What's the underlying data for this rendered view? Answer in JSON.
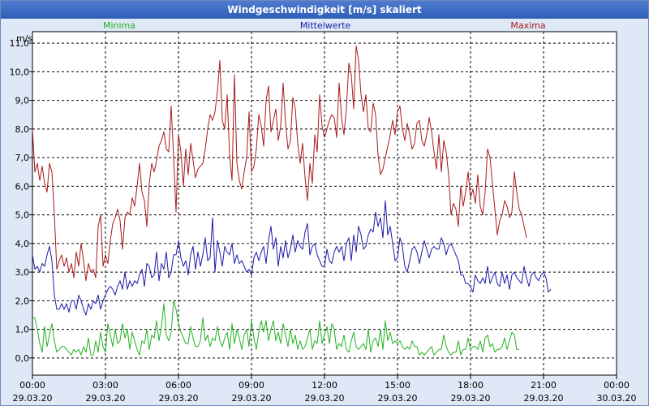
{
  "window": {
    "title": "Windgeschwindigkeit [m/s] skaliert"
  },
  "chart_data": {
    "type": "line",
    "title": "Windgeschwindigkeit [m/s] skaliert",
    "ylabel": "m/s",
    "xlabel": "",
    "ylim": [
      -0.6,
      11.4
    ],
    "yticks": [
      0.0,
      1.0,
      2.0,
      3.0,
      4.0,
      5.0,
      6.0,
      7.0,
      8.0,
      9.0,
      10.0,
      11.0
    ],
    "ytick_labels": [
      "0,0",
      "1,0",
      "2,0",
      "3,0",
      "4,0",
      "5,0",
      "6,0",
      "7,0",
      "8,0",
      "9,0",
      "10,0",
      "11,0"
    ],
    "xlim": [
      0,
      24
    ],
    "xticks": [
      0,
      3,
      6,
      9,
      12,
      15,
      18,
      21,
      24
    ],
    "xtick_labels": [
      [
        "00:00",
        "29.03.20"
      ],
      [
        "03:00",
        "29.03.20"
      ],
      [
        "06:00",
        "29.03.20"
      ],
      [
        "09:00",
        "29.03.20"
      ],
      [
        "12:00",
        "29.03.20"
      ],
      [
        "15:00",
        "29.03.20"
      ],
      [
        "18:00",
        "29.03.20"
      ],
      [
        "21:00",
        "29.03.20"
      ],
      [
        "00:00",
        "30.03.20"
      ]
    ],
    "grid": true,
    "legend_position": "top",
    "x_step_hours": 0.1,
    "series": [
      {
        "name": "Minima",
        "color": "#22b022",
        "values": [
          1.4,
          1.4,
          1.0,
          0.5,
          0.2,
          1.1,
          0.4,
          0.8,
          1.2,
          0.6,
          0.2,
          0.3,
          0.4,
          0.4,
          0.3,
          0.2,
          0.1,
          0.3,
          0.2,
          0.3,
          0.1,
          0.4,
          0.2,
          0.7,
          0.1,
          0.1,
          0.6,
          0.2,
          0.9,
          0.4,
          0.2,
          1.2,
          0.8,
          0.4,
          1.0,
          0.5,
          0.6,
          1.2,
          0.7,
          1.0,
          0.3,
          0.9,
          0.6,
          0.3,
          0.1,
          0.6,
          0.5,
          1.0,
          0.3,
          0.8,
          0.7,
          1.3,
          0.6,
          1.1,
          1.9,
          0.8,
          0.6,
          0.9,
          2.0,
          1.7,
          1.2,
          0.9,
          0.7,
          0.5,
          0.5,
          1.1,
          0.7,
          0.4,
          0.4,
          0.6,
          1.4,
          0.6,
          0.8,
          0.4,
          0.7,
          0.6,
          1.1,
          0.6,
          0.4,
          0.7,
          0.9,
          0.3,
          1.2,
          0.5,
          1.0,
          0.7,
          0.3,
          0.8,
          1.0,
          0.4,
          1.3,
          0.7,
          0.3,
          0.9,
          1.3,
          0.9,
          1.3,
          0.6,
          1.0,
          1.3,
          0.6,
          0.9,
          0.5,
          1.2,
          0.8,
          0.4,
          1.0,
          0.5,
          0.8,
          0.3,
          0.6,
          0.3,
          0.4,
          0.7,
          1.0,
          0.3,
          0.6,
          0.5,
          1.3,
          0.5,
          0.8,
          1.1,
          0.5,
          1.2,
          1.0,
          0.3,
          0.5,
          0.4,
          0.8,
          0.3,
          0.2,
          0.6,
          0.9,
          0.4,
          0.3,
          0.4,
          0.5,
          0.3,
          1.0,
          0.2,
          0.6,
          0.7,
          0.4,
          1.0,
          0.3,
          1.3,
          0.6,
          0.9,
          0.5,
          0.6,
          0.5,
          0.6,
          0.4,
          0.3,
          0.4,
          0.3,
          0.6,
          0.4,
          0.4,
          0.1,
          0.2,
          0.1,
          0.2,
          0.3,
          0.4,
          0.1,
          0.2,
          0.3,
          0.3,
          0.8,
          0.4,
          0.2,
          0.1,
          0.2,
          0.2,
          0.6,
          0.1,
          0.3,
          0.3,
          0.7,
          0.3,
          0.4,
          0.4,
          0.3,
          0.6,
          0.2,
          0.7,
          0.8,
          0.4,
          0.5,
          0.2,
          0.3,
          0.3,
          0.4,
          0.7,
          0.3,
          0.6,
          0.9,
          0.8,
          0.3,
          0.3
        ]
      },
      {
        "name": "Mittelwerte",
        "color": "#1a1aa8",
        "values": [
          3.6,
          3.1,
          3.2,
          3.0,
          3.3,
          3.2,
          3.6,
          3.9,
          3.4,
          2.2,
          1.7,
          1.7,
          1.9,
          1.7,
          1.9,
          1.6,
          2.0,
          2.0,
          1.7,
          2.2,
          2.0,
          1.7,
          1.5,
          1.9,
          1.7,
          2.0,
          1.9,
          2.2,
          1.7,
          2.0,
          2.2,
          2.4,
          2.5,
          2.4,
          2.2,
          2.5,
          2.7,
          2.4,
          3.0,
          2.4,
          2.7,
          2.5,
          2.7,
          2.6,
          2.9,
          3.1,
          2.5,
          3.3,
          3.2,
          2.8,
          2.9,
          3.7,
          2.7,
          3.3,
          3.1,
          3.7,
          2.8,
          3.0,
          3.6,
          3.6,
          4.1,
          3.5,
          3.2,
          3.4,
          2.9,
          3.6,
          3.9,
          3.1,
          3.7,
          3.2,
          3.6,
          4.2,
          3.4,
          3.5,
          4.9,
          3.0,
          4.1,
          3.7,
          3.2,
          3.9,
          3.7,
          3.6,
          4.0,
          3.3,
          3.6,
          3.3,
          3.4,
          3.2,
          3.0,
          3.1,
          2.9,
          3.5,
          3.7,
          3.4,
          3.7,
          3.9,
          3.3,
          4.1,
          4.6,
          3.8,
          4.2,
          3.2,
          3.9,
          3.5,
          4.1,
          3.5,
          3.8,
          4.3,
          3.7,
          4.1,
          3.9,
          3.8,
          4.4,
          4.7,
          3.6,
          3.9,
          4.0,
          3.6,
          3.4,
          3.2,
          3.2,
          3.8,
          3.4,
          3.3,
          3.7,
          3.9,
          3.7,
          3.9,
          3.4,
          4.0,
          4.2,
          3.4,
          4.3,
          3.7,
          4.6,
          4.3,
          3.8,
          3.9,
          4.3,
          4.5,
          4.4,
          5.1,
          4.6,
          4.9,
          4.2,
          5.5,
          4.3,
          4.6,
          4.0,
          3.4,
          3.5,
          4.2,
          3.9,
          3.2,
          3.0,
          3.4,
          3.8,
          3.9,
          3.7,
          3.3,
          3.7,
          4.1,
          3.8,
          3.5,
          3.8,
          3.9,
          3.8,
          3.8,
          4.2,
          4.0,
          3.6,
          3.9,
          4.0,
          3.8,
          3.6,
          3.4,
          2.9,
          2.9,
          2.6,
          2.6,
          2.5,
          2.3,
          2.9,
          2.7,
          2.6,
          2.8,
          2.6,
          3.2,
          2.6,
          2.8,
          3.0,
          2.6,
          2.5,
          3.0,
          2.6,
          2.9,
          2.4,
          2.9,
          3.0,
          2.8,
          2.7,
          2.6,
          3.2,
          2.8,
          2.5,
          2.9,
          3.0,
          2.8,
          2.7,
          2.9,
          3.0,
          2.8,
          2.3,
          2.4
        ]
      },
      {
        "name": "Maxima",
        "color": "#a81a1a",
        "values": [
          8.0,
          6.5,
          6.8,
          6.2,
          6.7,
          6.1,
          5.8,
          6.8,
          6.5,
          5.0,
          3.1,
          3.4,
          3.6,
          3.2,
          3.5,
          3.0,
          3.3,
          2.8,
          3.7,
          3.2,
          4.0,
          3.4,
          2.7,
          3.3,
          3.0,
          3.1,
          2.8,
          4.6,
          5.0,
          3.2,
          3.6,
          3.3,
          4.1,
          4.7,
          4.9,
          5.2,
          4.8,
          3.8,
          4.9,
          5.1,
          5.0,
          5.6,
          5.3,
          6.0,
          6.8,
          5.8,
          5.5,
          4.6,
          6.1,
          6.8,
          6.5,
          6.9,
          7.4,
          7.6,
          7.9,
          7.3,
          7.2,
          8.8,
          7.0,
          5.1,
          7.8,
          7.2,
          6.0,
          7.3,
          6.4,
          7.5,
          6.9,
          6.3,
          6.6,
          6.7,
          6.8,
          7.3,
          8.0,
          8.5,
          8.3,
          8.6,
          9.3,
          10.4,
          8.3,
          8.0,
          9.2,
          7.1,
          6.2,
          9.9,
          6.8,
          6.2,
          5.9,
          6.5,
          7.0,
          8.6,
          6.5,
          6.7,
          7.3,
          8.5,
          8.1,
          7.4,
          9.0,
          9.5,
          7.9,
          8.3,
          8.7,
          7.6,
          8.1,
          9.6,
          8.2,
          7.3,
          7.6,
          9.1,
          8.7,
          7.5,
          6.8,
          7.5,
          6.3,
          5.5,
          6.8,
          6.1,
          7.8,
          7.2,
          9.2,
          8.1,
          7.7,
          8.0,
          8.3,
          8.5,
          8.4,
          7.7,
          9.6,
          8.4,
          7.8,
          8.7,
          10.3,
          9.9,
          8.7,
          10.9,
          10.4,
          9.2,
          8.6,
          9.2,
          8.0,
          7.9,
          8.9,
          8.5,
          7.1,
          6.4,
          6.6,
          7.0,
          7.4,
          7.8,
          8.3,
          7.8,
          8.6,
          8.8,
          8.0,
          7.6,
          8.2,
          7.8,
          7.3,
          7.5,
          8.2,
          8.3,
          7.6,
          7.4,
          7.8,
          8.4,
          7.9,
          7.2,
          6.6,
          7.8,
          6.5,
          7.6,
          7.2,
          6.4,
          5.0,
          5.4,
          5.2,
          4.6,
          6.0,
          5.3,
          5.8,
          6.5,
          5.6,
          5.9,
          5.4,
          6.4,
          5.3,
          5.0,
          5.8,
          7.3,
          7.0,
          6.1,
          5.2,
          4.3,
          4.8,
          5.0,
          5.5,
          5.3,
          4.9,
          5.1,
          6.5,
          5.8,
          5.2,
          5.0,
          4.6,
          4.2
        ]
      }
    ]
  }
}
